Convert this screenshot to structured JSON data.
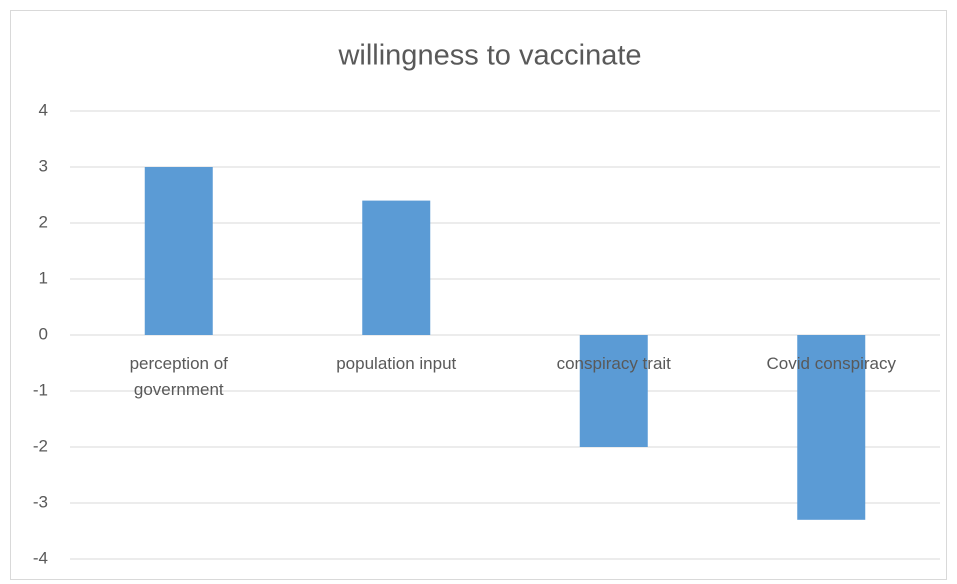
{
  "chart_data": {
    "type": "bar",
    "title": "willingness to vaccinate",
    "categories": [
      "perception of government",
      "population input",
      "conspiracy trait",
      "Covid conspiracy"
    ],
    "values": [
      3.0,
      2.4,
      -2.0,
      -3.3
    ],
    "color": "#5b9bd5",
    "ylim": [
      -4,
      4
    ],
    "yticks": [
      -4,
      -3,
      -2,
      -1,
      0,
      1,
      2,
      3,
      4
    ],
    "grid": true
  }
}
